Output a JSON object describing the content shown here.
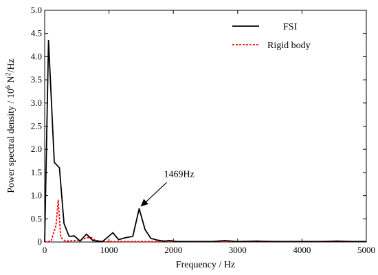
{
  "chart_data": {
    "type": "line",
    "xlabel": "Frequency / Hz",
    "ylabel_prefix": "Power spectral density / 10",
    "ylabel_exp1": "6",
    "ylabel_mid": " N",
    "ylabel_exp2": "2",
    "ylabel_suffix": "/Hz",
    "xlim": [
      0,
      5000
    ],
    "ylim": [
      0,
      5.0
    ],
    "x_ticks": [
      0,
      1000,
      2000,
      3000,
      4000,
      5000
    ],
    "y_ticks": [
      "0",
      "0.5",
      "1.0",
      "1.5",
      "2.0",
      "2.5",
      "3.0",
      "3.5",
      "4.0",
      "4.5",
      "5.0"
    ],
    "grid": false,
    "legend_position": "top-right",
    "series": [
      {
        "name": "FSI",
        "color": "#000000",
        "style": "solid",
        "points": [
          [
            0,
            0
          ],
          [
            60,
            4.35
          ],
          [
            150,
            1.72
          ],
          [
            230,
            1.6
          ],
          [
            300,
            0.4
          ],
          [
            380,
            0.12
          ],
          [
            460,
            0.13
          ],
          [
            550,
            0.02
          ],
          [
            650,
            0.17
          ],
          [
            750,
            0.03
          ],
          [
            900,
            0.01
          ],
          [
            1060,
            0.2
          ],
          [
            1150,
            0.05
          ],
          [
            1250,
            0.09
          ],
          [
            1370,
            0.12
          ],
          [
            1469,
            0.72
          ],
          [
            1560,
            0.27
          ],
          [
            1650,
            0.08
          ],
          [
            1750,
            0.04
          ],
          [
            1850,
            0.02
          ],
          [
            1950,
            0.03
          ],
          [
            2050,
            0.01
          ],
          [
            2300,
            0.01
          ],
          [
            2600,
            0.01
          ],
          [
            2800,
            0.03
          ],
          [
            3000,
            0.01
          ],
          [
            3300,
            0.02
          ],
          [
            3600,
            0.01
          ],
          [
            4000,
            0.01
          ],
          [
            4300,
            0.01
          ],
          [
            4550,
            0.02
          ],
          [
            4800,
            0.01
          ],
          [
            5000,
            0.01
          ]
        ]
      },
      {
        "name": "Rigid body",
        "color": "#ff0000",
        "style": "dashed",
        "points": [
          [
            0,
            0
          ],
          [
            100,
            0.02
          ],
          [
            140,
            0.2
          ],
          [
            175,
            0.35
          ],
          [
            210,
            0.9
          ],
          [
            250,
            0.1
          ],
          [
            320,
            0.02
          ],
          [
            450,
            0.03
          ],
          [
            560,
            0.04
          ],
          [
            650,
            0.09
          ],
          [
            720,
            0.1
          ],
          [
            800,
            0.03
          ],
          [
            900,
            0.01
          ],
          [
            1200,
            0.01
          ],
          [
            2000,
            0.01
          ],
          [
            3000,
            0.01
          ],
          [
            4000,
            0.01
          ],
          [
            5000,
            0.01
          ]
        ]
      }
    ],
    "annotation": {
      "text": "1469Hz",
      "x": 1469,
      "y": 0.72
    }
  }
}
